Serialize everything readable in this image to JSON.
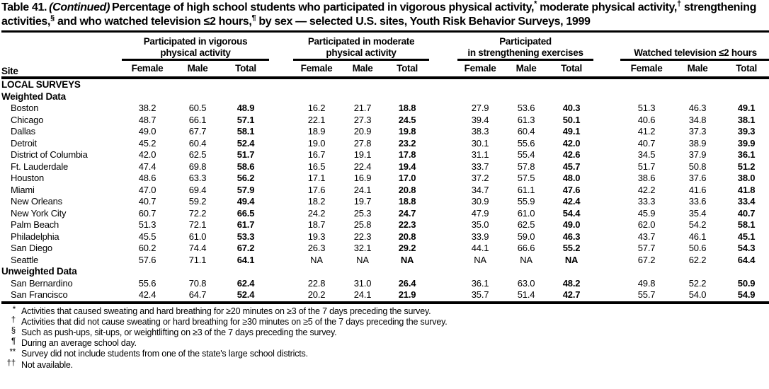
{
  "title": {
    "prefix": "Table 41.",
    "continued": "(Continued)",
    "segments": [
      {
        "text": "Percentage of high school students who participated in vigorous physical activity,",
        "sup": false
      },
      {
        "text": "*",
        "sup": true
      },
      {
        "text": " moderate physical activity,",
        "sup": false
      },
      {
        "text": "†",
        "sup": true
      },
      {
        "text": " strengthening activities,",
        "sup": false
      },
      {
        "text": "§",
        "sup": true
      },
      {
        "text": " and who watched television ≤2 hours,",
        "sup": false
      },
      {
        "text": "¶",
        "sup": true
      },
      {
        "text": " by sex — selected U.S. sites, Youth Risk Behavior Surveys, 1999",
        "sup": false
      }
    ]
  },
  "table": {
    "site_header": "Site",
    "groups": [
      {
        "line1": "Participated in vigorous",
        "line2": "physical activity"
      },
      {
        "line1": "Participated in moderate",
        "line2": "physical activity"
      },
      {
        "line1": "Participated",
        "line2": "in strengthening exercises"
      },
      {
        "line1": "",
        "line2": "Watched television ≤2 hours"
      }
    ],
    "sub_headers": [
      "Female",
      "Male",
      "Total"
    ],
    "sections": [
      {
        "label": "LOCAL SURVEYS",
        "rows": []
      },
      {
        "label": "Weighted Data",
        "rows": [
          {
            "site": "Boston",
            "vigorous": [
              "38.2",
              "60.5",
              "48.9"
            ],
            "moderate": [
              "16.2",
              "21.7",
              "18.8"
            ],
            "strengthening": [
              "27.9",
              "53.6",
              "40.3"
            ],
            "television": [
              "51.3",
              "46.3",
              "49.1"
            ]
          },
          {
            "site": "Chicago",
            "vigorous": [
              "48.7",
              "66.1",
              "57.1"
            ],
            "moderate": [
              "22.1",
              "27.3",
              "24.5"
            ],
            "strengthening": [
              "39.4",
              "61.3",
              "50.1"
            ],
            "television": [
              "40.6",
              "34.8",
              "38.1"
            ]
          },
          {
            "site": "Dallas",
            "vigorous": [
              "49.0",
              "67.7",
              "58.1"
            ],
            "moderate": [
              "18.9",
              "20.9",
              "19.8"
            ],
            "strengthening": [
              "38.3",
              "60.4",
              "49.1"
            ],
            "television": [
              "41.2",
              "37.3",
              "39.3"
            ]
          },
          {
            "site": "Detroit",
            "vigorous": [
              "45.2",
              "60.4",
              "52.4"
            ],
            "moderate": [
              "19.0",
              "27.8",
              "23.2"
            ],
            "strengthening": [
              "30.1",
              "55.6",
              "42.0"
            ],
            "television": [
              "40.7",
              "38.9",
              "39.9"
            ]
          },
          {
            "site": "District of Columbia",
            "vigorous": [
              "42.0",
              "62.5",
              "51.7"
            ],
            "moderate": [
              "16.7",
              "19.1",
              "17.8"
            ],
            "strengthening": [
              "31.1",
              "55.4",
              "42.6"
            ],
            "television": [
              "34.5",
              "37.9",
              "36.1"
            ]
          },
          {
            "site": "Ft. Lauderdale",
            "vigorous": [
              "47.4",
              "69.8",
              "58.6"
            ],
            "moderate": [
              "16.5",
              "22.4",
              "19.4"
            ],
            "strengthening": [
              "33.7",
              "57.8",
              "45.7"
            ],
            "television": [
              "51.7",
              "50.8",
              "51.2"
            ]
          },
          {
            "site": "Houston",
            "vigorous": [
              "48.6",
              "63.3",
              "56.2"
            ],
            "moderate": [
              "17.1",
              "16.9",
              "17.0"
            ],
            "strengthening": [
              "37.2",
              "57.5",
              "48.0"
            ],
            "television": [
              "38.6",
              "37.6",
              "38.0"
            ]
          },
          {
            "site": "Miami",
            "vigorous": [
              "47.0",
              "69.4",
              "57.9"
            ],
            "moderate": [
              "17.6",
              "24.1",
              "20.8"
            ],
            "strengthening": [
              "34.7",
              "61.1",
              "47.6"
            ],
            "television": [
              "42.2",
              "41.6",
              "41.8"
            ]
          },
          {
            "site": "New Orleans",
            "vigorous": [
              "40.7",
              "59.2",
              "49.4"
            ],
            "moderate": [
              "18.2",
              "19.7",
              "18.8"
            ],
            "strengthening": [
              "30.9",
              "55.9",
              "42.4"
            ],
            "television": [
              "33.3",
              "33.6",
              "33.4"
            ]
          },
          {
            "site": "New York City",
            "vigorous": [
              "60.7",
              "72.2",
              "66.5"
            ],
            "moderate": [
              "24.2",
              "25.3",
              "24.7"
            ],
            "strengthening": [
              "47.9",
              "61.0",
              "54.4"
            ],
            "television": [
              "45.9",
              "35.4",
              "40.7"
            ]
          },
          {
            "site": "Palm Beach",
            "vigorous": [
              "51.3",
              "72.1",
              "61.7"
            ],
            "moderate": [
              "18.7",
              "25.8",
              "22.3"
            ],
            "strengthening": [
              "35.0",
              "62.5",
              "49.0"
            ],
            "television": [
              "62.0",
              "54.2",
              "58.1"
            ]
          },
          {
            "site": "Philadelphia",
            "vigorous": [
              "45.5",
              "61.0",
              "53.3"
            ],
            "moderate": [
              "19.3",
              "22.3",
              "20.8"
            ],
            "strengthening": [
              "33.9",
              "59.0",
              "46.3"
            ],
            "television": [
              "43.7",
              "46.1",
              "45.1"
            ]
          },
          {
            "site": "San Diego",
            "vigorous": [
              "60.2",
              "74.4",
              "67.2"
            ],
            "moderate": [
              "26.3",
              "32.1",
              "29.2"
            ],
            "strengthening": [
              "44.1",
              "66.6",
              "55.2"
            ],
            "television": [
              "57.7",
              "50.6",
              "54.3"
            ]
          },
          {
            "site": "Seattle",
            "vigorous": [
              "57.6",
              "71.1",
              "64.1"
            ],
            "moderate": [
              "NA",
              "NA",
              "NA"
            ],
            "strengthening": [
              "NA",
              "NA",
              "NA"
            ],
            "television": [
              "67.2",
              "62.2",
              "64.4"
            ]
          }
        ]
      },
      {
        "label": "Unweighted Data",
        "rows": [
          {
            "site": "San Bernardino",
            "vigorous": [
              "55.6",
              "70.8",
              "62.4"
            ],
            "moderate": [
              "22.8",
              "31.0",
              "26.4"
            ],
            "strengthening": [
              "36.1",
              "63.0",
              "48.2"
            ],
            "television": [
              "49.8",
              "52.2",
              "50.9"
            ]
          },
          {
            "site": "San Francisco",
            "vigorous": [
              "42.4",
              "64.7",
              "52.4"
            ],
            "moderate": [
              "20.2",
              "24.1",
              "21.9"
            ],
            "strengthening": [
              "35.7",
              "51.4",
              "42.7"
            ],
            "television": [
              "55.7",
              "54.0",
              "54.9"
            ]
          }
        ]
      }
    ]
  },
  "footnotes": [
    {
      "marker": "*",
      "text": "Activities that caused sweating and hard breathing for ≥20 minutes on ≥3 of the 7 days preceding the survey."
    },
    {
      "marker": "†",
      "text": "Activities that did not cause sweating or hard breathing for ≥30 minutes on ≥5 of the 7 days preceding the survey."
    },
    {
      "marker": "§",
      "text": "Such as push-ups, sit-ups, or weightlifting on ≥3 of the 7 days preceding the survey."
    },
    {
      "marker": "¶",
      "text": "During an average school day."
    },
    {
      "marker": "**",
      "text": "Survey did not include students from one of the state's large school districts."
    },
    {
      "marker": "††",
      "text": "Not available."
    }
  ]
}
